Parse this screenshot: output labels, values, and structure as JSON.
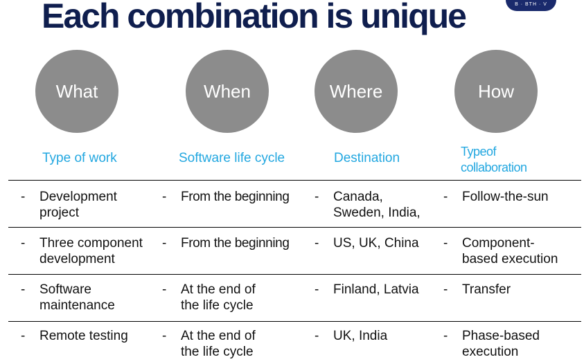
{
  "title": "Each combination is unique",
  "logo_text": "B · BTH · V",
  "columns": [
    {
      "circle": "What",
      "heading": "Type of work"
    },
    {
      "circle": "When",
      "heading": "Software life cycle"
    },
    {
      "circle": "Where",
      "heading": "Destination"
    },
    {
      "circle": "How",
      "heading": "Typeof\ncollaboration"
    }
  ],
  "dash": "-",
  "rows": [
    {
      "cells": [
        "Development\nproject",
        "From the beginning",
        "Canada,\nSweden, India,",
        "Follow-the-sun"
      ]
    },
    {
      "cells": [
        "Three component\ndevelopment",
        "From the beginning",
        "US, UK, China",
        "Component-\nbased execution"
      ]
    },
    {
      "cells": [
        "Software\nmaintenance",
        "At the end of\nthe life cycle",
        "Finland, Latvia",
        "Transfer"
      ]
    },
    {
      "cells": [
        "Remote testing",
        "At the end of\nthe life cycle",
        "UK, India",
        "Phase-based\nexecution"
      ]
    }
  ]
}
